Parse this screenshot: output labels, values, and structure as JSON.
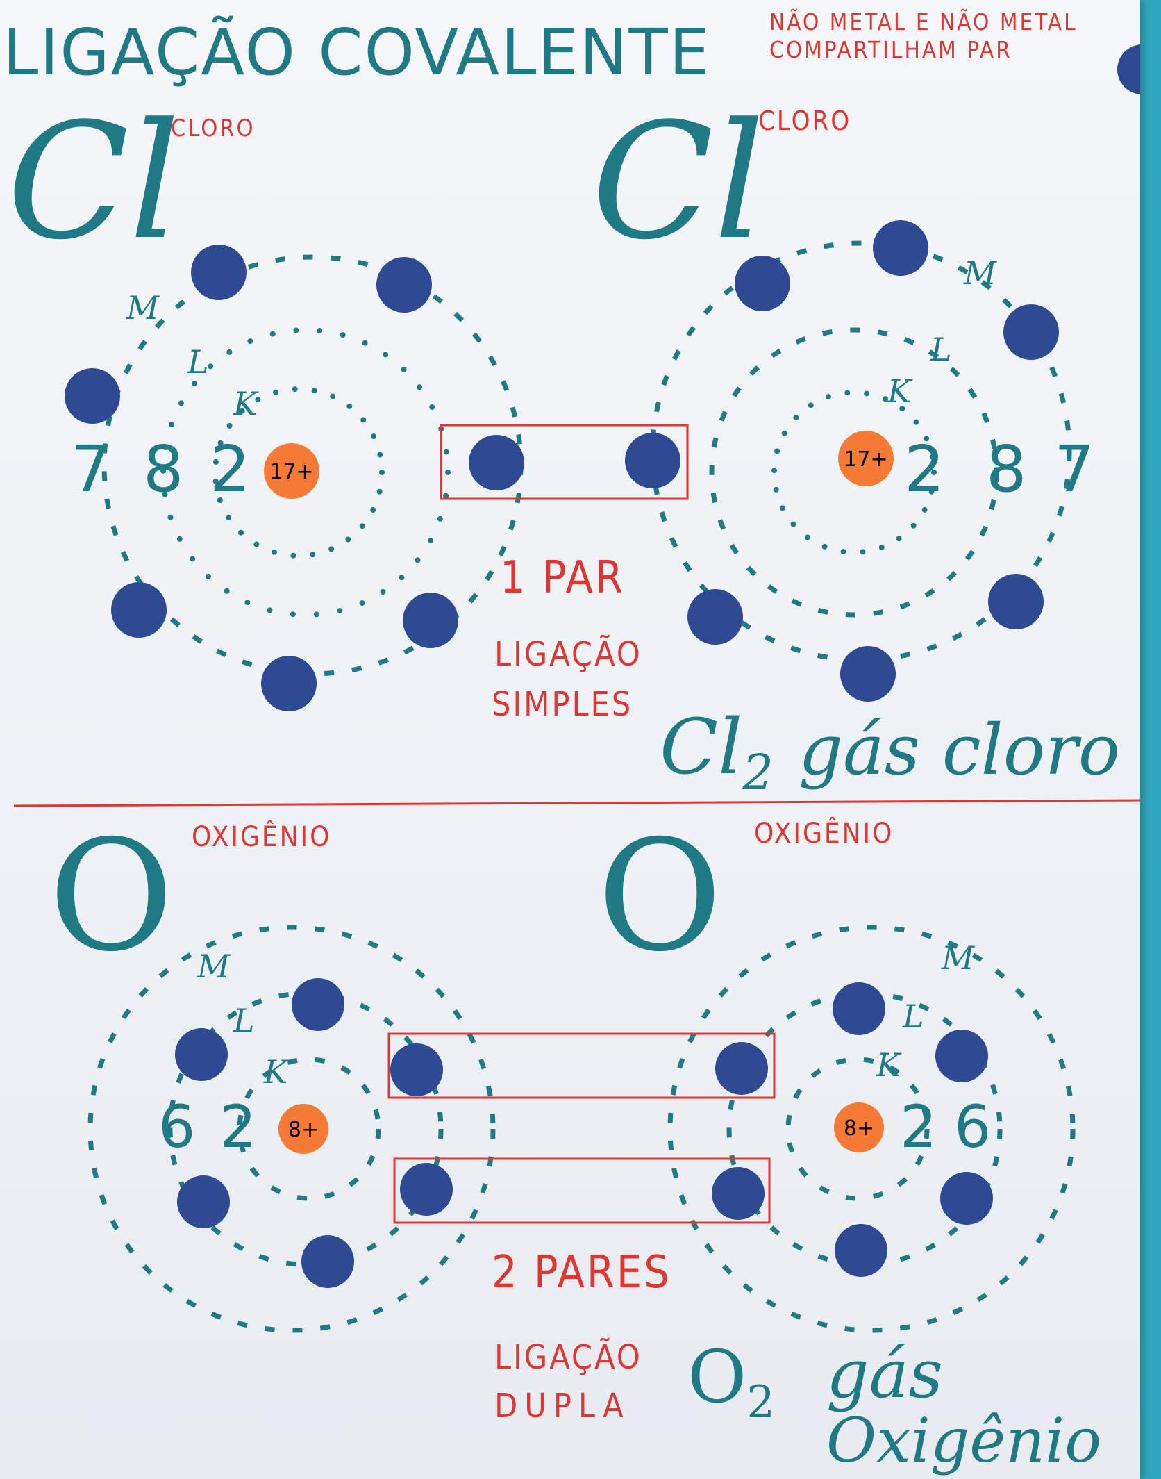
{
  "title": "LIGAÇÃO COVALENTE",
  "subtitle": "NÃO METAL E NÃO METAL COMPARTILHAM PAR",
  "section_simple": {
    "left_symbol": "Cl",
    "left_name": "CLORO",
    "right_symbol": "Cl",
    "right_name": "CLORO",
    "left_shells": {
      "M": "7",
      "L": "8",
      "K": "2"
    },
    "right_shells": {
      "K": "2",
      "L": "8",
      "M": "7"
    },
    "shell_letters": {
      "M": "M",
      "L": "L",
      "K": "K"
    },
    "nucleus_charge": "17+",
    "pairs": "1 PAR",
    "bond_type_line1": "LIGAÇÃO",
    "bond_type_line2": "SIMPLES",
    "molecule_formula": "Cl2",
    "molecule_formula_base": "Cl",
    "molecule_formula_sub": "2",
    "molecule_name": "gás cloro"
  },
  "section_double": {
    "left_symbol": "O",
    "left_name": "OXIGÊNIO",
    "right_symbol": "O",
    "right_name": "OXIGÊNIO",
    "left_shells": {
      "L": "6",
      "K": "2"
    },
    "right_shells": {
      "K": "2",
      "L": "6"
    },
    "shell_letters": {
      "M": "M",
      "L": "L",
      "K": "K"
    },
    "nucleus_charge": "8+",
    "pairs": "2 PARES",
    "bond_type_line1": "LIGAÇÃO",
    "bond_type_line2": "DUPLA",
    "molecule_formula": "O2",
    "molecule_formula_base": "O",
    "molecule_formula_sub": "2",
    "molecule_name_line1": "gás",
    "molecule_name_line2": "Oxigênio"
  },
  "colors": {
    "background": "#2fa6bd",
    "paper": "#f1f4f8",
    "electron": "#2d4a92",
    "nucleus": "#f47a35",
    "ink_teal": "#1f7a85",
    "ink_red": "#e03530"
  }
}
